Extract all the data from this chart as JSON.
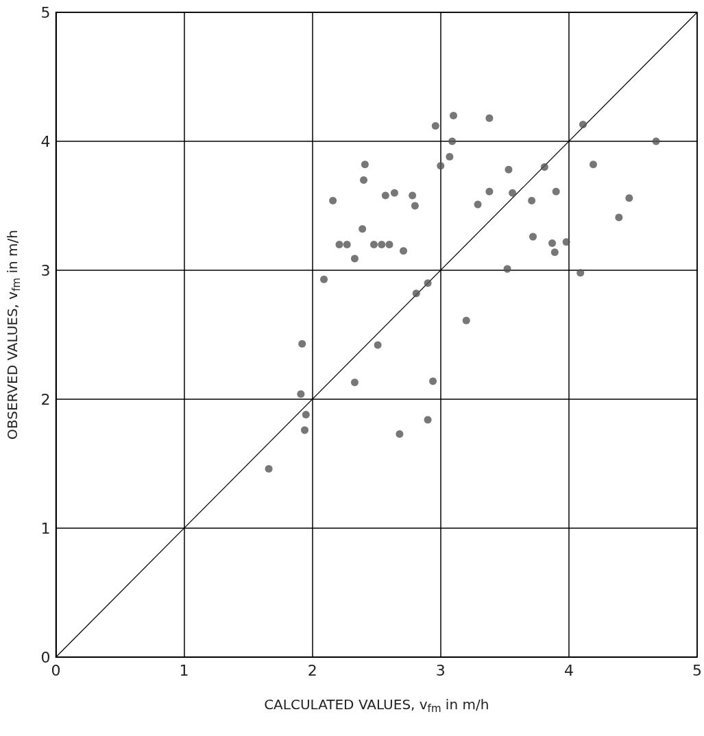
{
  "chart_data": {
    "type": "scatter",
    "xlabel": "CALCULATED VALUES, v$_{fm}$ in m/h",
    "ylabel": "OBSERVED VALUES, v$_{fm}$ in m/h",
    "xlim": [
      0,
      5
    ],
    "xticks": [
      0,
      1,
      2,
      3,
      4,
      5
    ],
    "ylim": [
      0,
      5
    ],
    "yticks": [
      0,
      1,
      2,
      3,
      4,
      5
    ],
    "grid": true,
    "series": [
      {
        "marker": "circle",
        "color": "#555555",
        "x": [
          1.66,
          1.92,
          1.91,
          1.95,
          1.94,
          2.09,
          2.16,
          2.21,
          2.27,
          2.33,
          2.33,
          2.39,
          2.4,
          2.41,
          2.48,
          2.51,
          2.54,
          2.57,
          2.6,
          2.64,
          2.71,
          2.68,
          2.78,
          2.8,
          2.81,
          2.9,
          2.9,
          2.94,
          2.96,
          3.0,
          3.07,
          3.09,
          3.1,
          3.2,
          3.29,
          3.38,
          3.38,
          3.52,
          3.53,
          3.56,
          3.71,
          3.72,
          3.81,
          3.87,
          3.89,
          3.9,
          3.98,
          4.09,
          4.11,
          4.19,
          4.39,
          4.47,
          4.68
        ],
        "values": [
          1.46,
          2.43,
          2.04,
          1.88,
          1.76,
          2.93,
          3.54,
          3.2,
          3.2,
          3.09,
          2.13,
          3.32,
          3.7,
          3.82,
          3.2,
          2.42,
          3.2,
          3.58,
          3.2,
          3.6,
          3.15,
          1.73,
          3.58,
          3.5,
          2.82,
          2.9,
          1.84,
          2.14,
          4.12,
          3.81,
          3.88,
          4.0,
          4.2,
          2.61,
          3.51,
          3.61,
          4.18,
          3.01,
          3.78,
          3.6,
          3.54,
          3.26,
          3.8,
          3.21,
          3.14,
          3.61,
          3.22,
          2.98,
          4.13,
          3.82,
          3.41,
          3.56,
          4.0
        ]
      },
      {
        "type": "line",
        "color": "#000000",
        "x": [
          0,
          5
        ],
        "values": [
          0,
          5
        ],
        "line_style": "solid",
        "marker": "none"
      }
    ]
  }
}
